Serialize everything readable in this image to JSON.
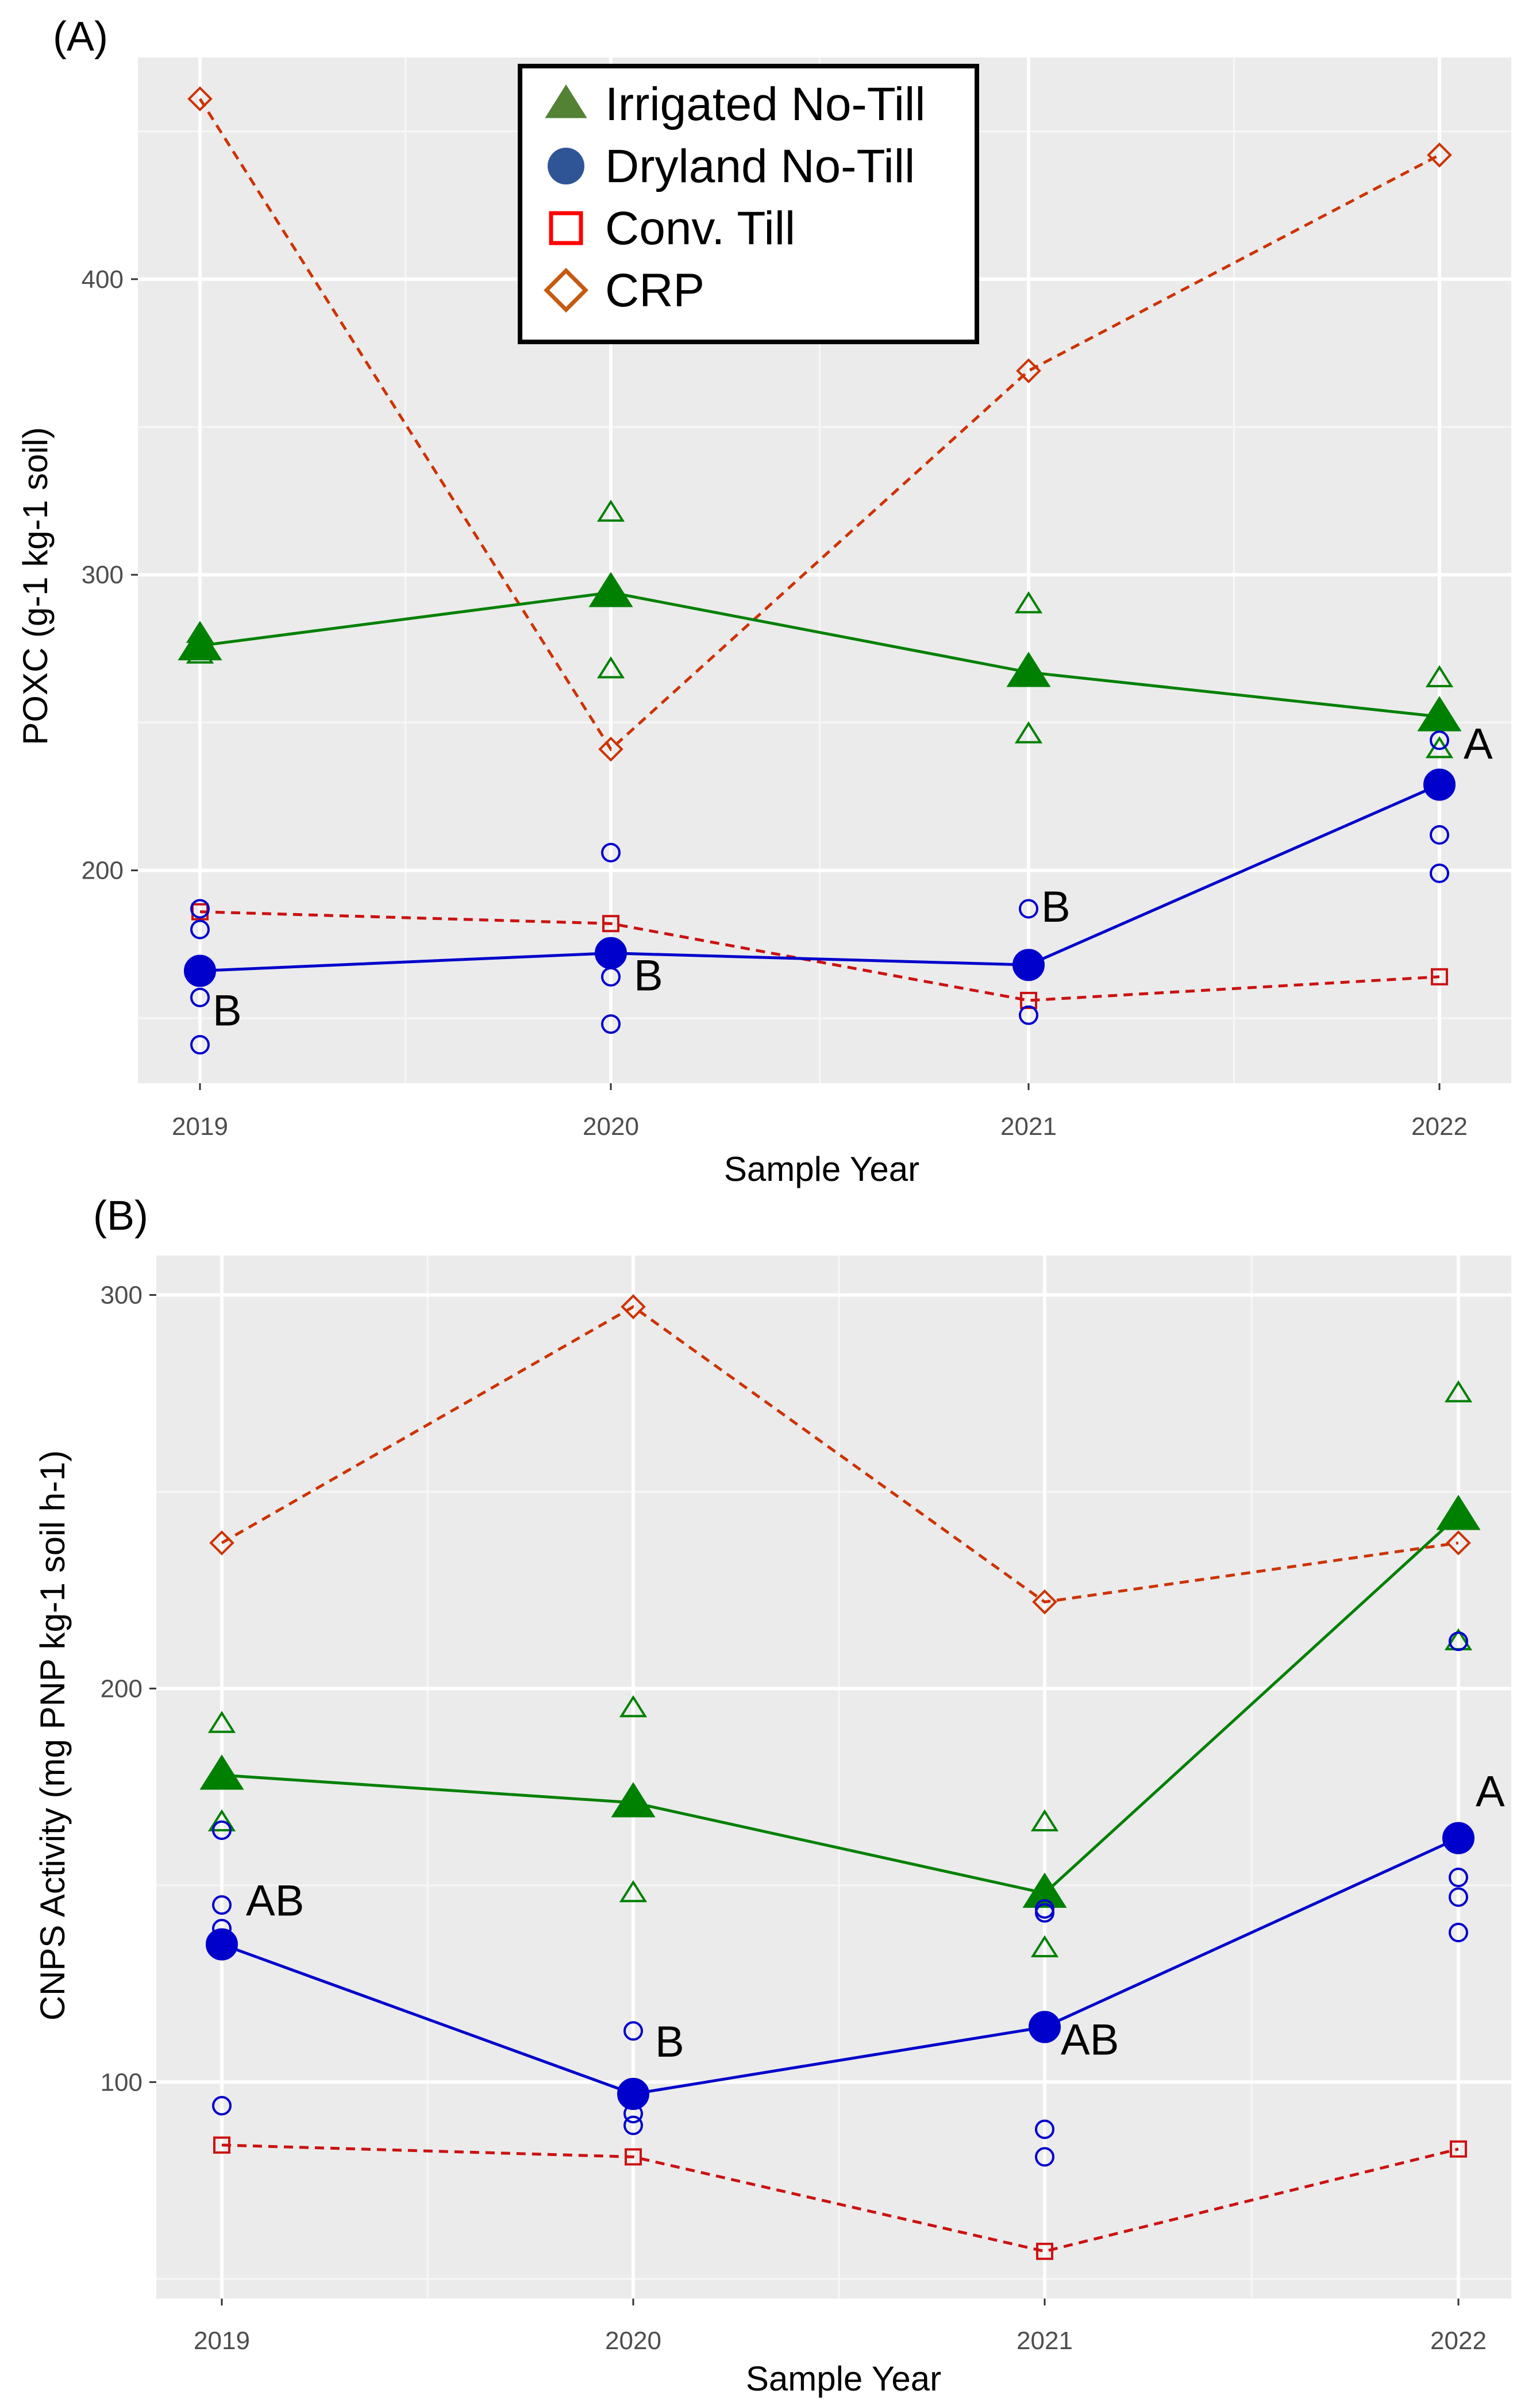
{
  "chart_data": [
    {
      "type": "line",
      "panel_label": "(A)",
      "xlabel": "Sample Year",
      "ylabel": "POXC (g-1 kg-1 soil)",
      "categories": [
        "2019",
        "2020",
        "2021",
        "2022"
      ],
      "ylim": [
        128,
        475
      ],
      "yticks": [
        200,
        300,
        400
      ],
      "grid": true,
      "legend": {
        "position": "top-center",
        "entries": [
          {
            "name": "Irrigated No-Till",
            "symbol": "filled-triangle",
            "color": "#548235"
          },
          {
            "name": "Dryland No-Till",
            "symbol": "filled-circle",
            "color": "#2f5597"
          },
          {
            "name": "Conv. Till",
            "symbol": "open-square",
            "color": "#ff0000"
          },
          {
            "name": "CRP",
            "symbol": "open-diamond",
            "color": "#c55a11"
          }
        ]
      },
      "series": [
        {
          "name": "Irrigated No-Till",
          "style": "solid-filled-triangle",
          "color": "#008000",
          "values": [
            276,
            294,
            267,
            252
          ],
          "replicates": [
            [
              280,
              273
            ],
            [
              321,
              268
            ],
            [
              290,
              246
            ],
            [
              265,
              241
            ]
          ]
        },
        {
          "name": "Dryland No-Till",
          "style": "solid-filled-circle",
          "color": "#0000cc",
          "values": [
            166,
            172,
            168,
            229
          ],
          "replicates": [
            [
              187,
              180,
              157,
              141
            ],
            [
              206,
              164,
              148
            ],
            [
              187,
              151
            ],
            [
              244,
              212,
              199
            ]
          ]
        },
        {
          "name": "Conv. Till",
          "style": "dashed-open-square",
          "color": "#cc1111",
          "values": [
            186,
            182,
            156,
            164
          ],
          "replicates": []
        },
        {
          "name": "CRP",
          "style": "dashed-open-diamond",
          "color": "#cc3300",
          "values": [
            461,
            241,
            369,
            442
          ],
          "replicates": []
        }
      ],
      "annotations": [
        {
          "text": "B",
          "x": "2019",
          "series": "Dryland No-Till"
        },
        {
          "text": "B",
          "x": "2020",
          "series": "Dryland No-Till"
        },
        {
          "text": "B",
          "x": "2021",
          "series": "Dryland No-Till"
        },
        {
          "text": "A",
          "x": "2022",
          "series": "Dryland No-Till"
        }
      ]
    },
    {
      "type": "line",
      "panel_label": "(B)",
      "xlabel": "Sample Year",
      "ylabel": "CNPS Activity (mg PNP kg-1 soil h-1)",
      "categories": [
        "2019",
        "2020",
        "2021",
        "2022"
      ],
      "ylim": [
        45,
        310
      ],
      "yticks": [
        100,
        200,
        300
      ],
      "grid": true,
      "series": [
        {
          "name": "Irrigated No-Till",
          "style": "solid-filled-triangle",
          "color": "#008000",
          "values": [
            178,
            171,
            148,
            244
          ],
          "replicates": [
            [
              191,
              166
            ],
            [
              195,
              148
            ],
            [
              166,
              134
            ],
            [
              275,
              212
            ]
          ]
        },
        {
          "name": "Dryland No-Till",
          "style": "solid-filled-circle",
          "color": "#0000cc",
          "values": [
            135,
            97,
            114,
            162
          ],
          "replicates": [
            [
              164,
              145,
              139,
              94
            ],
            [
              113,
              92,
              89
            ],
            [
              144,
              143,
              88,
              81
            ],
            [
              212,
              152,
              147,
              138
            ]
          ]
        },
        {
          "name": "Conv. Till",
          "style": "dashed-open-square",
          "color": "#cc1111",
          "values": [
            84,
            81,
            57,
            83
          ],
          "replicates": []
        },
        {
          "name": "CRP",
          "style": "dashed-open-diamond",
          "color": "#cc3300",
          "values": [
            237,
            297,
            222,
            237
          ],
          "replicates": []
        }
      ],
      "annotations": [
        {
          "text": "AB",
          "x": "2019",
          "series": "Dryland No-Till"
        },
        {
          "text": "B",
          "x": "2020",
          "series": "Dryland No-Till"
        },
        {
          "text": "AB",
          "x": "2021",
          "series": "Dryland No-Till"
        },
        {
          "text": "A",
          "x": "2022",
          "series": "Dryland No-Till"
        }
      ]
    }
  ]
}
